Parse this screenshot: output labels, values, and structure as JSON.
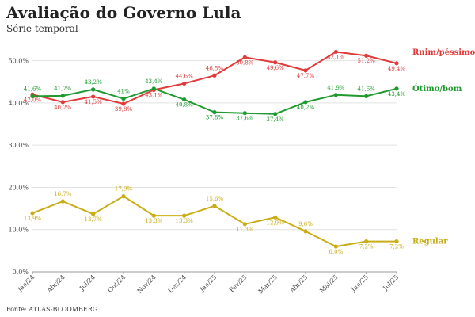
{
  "chart_data": {
    "type": "line",
    "title": "Avaliação do Governo Lula",
    "subtitle": "Série temporal",
    "source": "Fonte: ATLAS-BLOOMBERG",
    "xlabel": "",
    "ylabel": "",
    "ylim": [
      0,
      55
    ],
    "yticks": [
      0,
      10,
      20,
      30,
      40,
      50
    ],
    "ytick_labels": [
      "0,0%",
      "10,0%",
      "20,0%",
      "30,0%",
      "40,0%",
      "50,0%"
    ],
    "categories": [
      "Jan/24",
      "Abr/24",
      "Jul/24",
      "Out/24",
      "Nov/24",
      "Dez/24",
      "Jan/25",
      "Fev/25",
      "Mar/25",
      "Abr/25",
      "Mai/25",
      "Jun/25",
      "Jul/25"
    ],
    "series": [
      {
        "name": "Ruim/péssimo",
        "color": "#e03a3a",
        "values": [
          42.0,
          40.2,
          41.5,
          39.8,
          43.1,
          44.6,
          46.5,
          50.8,
          49.6,
          47.7,
          52.1,
          51.2,
          49.4
        ],
        "labels": [
          "42,0%",
          "40,2%",
          "41,5%",
          "39,8%",
          "43,1%",
          "44,6%",
          "46,5%",
          "50,8%",
          "49,6%",
          "47,7%",
          "52,1%",
          "51,2%",
          "49,4%"
        ]
      },
      {
        "name": "Ótimo/bom",
        "color": "#1e9a2e",
        "values": [
          41.6,
          41.7,
          43.2,
          41.0,
          43.4,
          40.8,
          37.8,
          37.6,
          37.4,
          40.2,
          41.9,
          41.6,
          43.4
        ],
        "labels": [
          "41,6%",
          "41,7%",
          "43,2%",
          "41%",
          "43,4%",
          "40,8%",
          "37,8%",
          "37,6%",
          "37,4%",
          "40,2%",
          "41,9%",
          "41,6%",
          "43,4%"
        ]
      },
      {
        "name": "Regular",
        "color": "#c9ad17",
        "values": [
          13.9,
          16.7,
          13.7,
          17.9,
          13.3,
          13.3,
          15.6,
          11.3,
          12.9,
          9.6,
          6.0,
          7.2,
          7.2
        ],
        "labels": [
          "13,9%",
          "16,7%",
          "13,7%",
          "17,9%",
          "13,3%",
          "13,3%",
          "15,6%",
          "11,3%",
          "12,9%",
          "9,6%",
          "6,0%",
          "7,2%",
          "7,2%"
        ]
      }
    ],
    "legend": "right-inline",
    "grid": true
  }
}
